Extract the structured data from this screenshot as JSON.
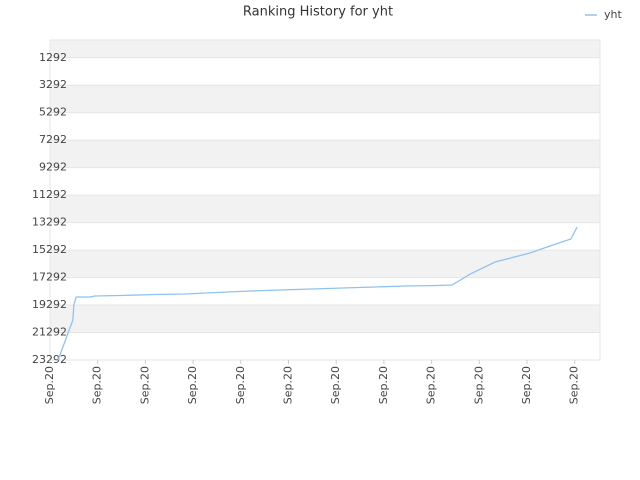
{
  "chart_data": {
    "type": "line",
    "title": "Ranking History for yht",
    "xlim": [
      0,
      11.53
    ],
    "xticks": [
      {
        "value": 0,
        "label": "Sep.20"
      },
      {
        "value": 1,
        "label": "Sep.20"
      },
      {
        "value": 2,
        "label": "Sep.20"
      },
      {
        "value": 3,
        "label": "Sep.20"
      },
      {
        "value": 4,
        "label": "Sep.20"
      },
      {
        "value": 5,
        "label": "Sep.20"
      },
      {
        "value": 6,
        "label": "Sep.20"
      },
      {
        "value": 7,
        "label": "Sep.20"
      },
      {
        "value": 8,
        "label": "Sep.20"
      },
      {
        "value": 9,
        "label": "Sep.20"
      },
      {
        "value": 10,
        "label": "Sep.20"
      },
      {
        "value": 11,
        "label": "Sep.20"
      }
    ],
    "ylim": [
      23292,
      0
    ],
    "yticks": [
      1292,
      3292,
      5292,
      7292,
      9292,
      11292,
      13292,
      15292,
      17292,
      19292,
      21292,
      23292
    ],
    "inverted_y": true,
    "grid": true,
    "legend": "top-right",
    "x": [
      0.17,
      0.48,
      0.5,
      0.55,
      0.84,
      0.94,
      1.47,
      2.2,
      2.83,
      3.5,
      4.19,
      4.82,
      5.49,
      6.14,
      6.81,
      7.44,
      8.11,
      8.43,
      8.81,
      9.33,
      10.06,
      10.48,
      10.92,
      11.05
    ],
    "series": [
      {
        "name": "yht",
        "color": "#8fc3ef",
        "values": [
          23292,
          20381,
          19289,
          18707,
          18707,
          18634,
          18598,
          18525,
          18489,
          18380,
          18270,
          18198,
          18125,
          18052,
          17979,
          17906,
          17870,
          17834,
          17033,
          16160,
          15504,
          14995,
          14486,
          13612
        ]
      }
    ]
  }
}
